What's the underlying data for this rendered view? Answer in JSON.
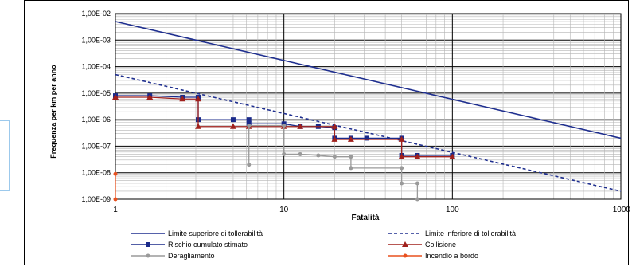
{
  "chart_data": {
    "type": "line",
    "title": "",
    "xlabel": "Fatalità",
    "ylabel": "Frequenza per km per anno",
    "x_scale": "log",
    "y_scale": "log",
    "xlim": [
      1,
      1000
    ],
    "ylim": [
      1e-09,
      0.01
    ],
    "grid": true,
    "legend_position": "bottom",
    "x_tick_labels": [
      "1",
      "10",
      "100",
      "1000"
    ],
    "y_tick_labels": [
      "1,00E-09",
      "1,00E-08",
      "1,00E-07",
      "1,00E-06",
      "1,00E-05",
      "1,00E-04",
      "1,00E-03",
      "1,00E-02"
    ],
    "series": [
      {
        "name": "Limite superiore di tollerabilità",
        "color": "#1f2f8f",
        "style": "solid",
        "marker": "none",
        "points": [
          [
            1,
            0.005
          ],
          [
            1000,
            2e-07
          ]
        ]
      },
      {
        "name": "Limite inferiore di tollerabilità",
        "color": "#1f2f8f",
        "style": "dashed",
        "marker": "none",
        "points": [
          [
            1,
            5e-05
          ],
          [
            1000,
            2e-09
          ]
        ]
      },
      {
        "name": "Rischio cumulato stimato",
        "color": "#1a2a8a",
        "style": "solid",
        "marker": "square",
        "points": [
          [
            1,
            8e-06
          ],
          [
            1.6,
            8e-06
          ],
          [
            2.5,
            7e-06
          ],
          [
            3.1,
            7e-06
          ],
          [
            3.1,
            1e-06
          ],
          [
            5,
            1e-06
          ],
          [
            6.2,
            1e-06
          ],
          [
            6.2,
            7e-07
          ],
          [
            10,
            7e-07
          ],
          [
            12.5,
            5.5e-07
          ],
          [
            16,
            5.5e-07
          ],
          [
            20,
            5e-07
          ],
          [
            20,
            2e-07
          ],
          [
            25,
            2e-07
          ],
          [
            31,
            2e-07
          ],
          [
            50,
            2e-07
          ],
          [
            50,
            4.5e-08
          ],
          [
            62,
            4.5e-08
          ],
          [
            100,
            4.5e-08
          ]
        ]
      },
      {
        "name": "Collisione",
        "color": "#a0201c",
        "style": "solid",
        "marker": "triangle",
        "points": [
          [
            1,
            7e-06
          ],
          [
            1.6,
            7e-06
          ],
          [
            2.5,
            6e-06
          ],
          [
            3.1,
            6e-06
          ],
          [
            3.1,
            5.5e-07
          ],
          [
            5,
            5.5e-07
          ],
          [
            6.2,
            5.5e-07
          ],
          [
            10,
            5.5e-07
          ],
          [
            12.5,
            5.5e-07
          ],
          [
            20,
            5.5e-07
          ],
          [
            20,
            1.8e-07
          ],
          [
            25,
            1.8e-07
          ],
          [
            50,
            1.8e-07
          ],
          [
            50,
            4e-08
          ],
          [
            62,
            4e-08
          ],
          [
            100,
            4e-08
          ]
        ]
      },
      {
        "name": "Deragliamento",
        "color": "#9a9a9a",
        "style": "solid",
        "marker": "circle",
        "points": [
          [
            6.2,
            2e-08
          ],
          [
            6.2,
            6e-07
          ],
          [
            10,
            6e-07
          ],
          [
            10,
            5e-08
          ],
          [
            12.5,
            5e-08
          ],
          [
            16,
            4.5e-08
          ],
          [
            20,
            4e-08
          ],
          [
            25,
            4e-08
          ],
          [
            25,
            1.5e-08
          ],
          [
            50,
            1.5e-08
          ],
          [
            50,
            4e-09
          ],
          [
            62,
            4e-09
          ],
          [
            62,
            1e-09
          ]
        ]
      },
      {
        "name": "Incendio a bordo",
        "color": "#e8501e",
        "style": "solid",
        "marker": "circle",
        "points": [
          [
            1,
            9e-09
          ],
          [
            1,
            1e-09
          ]
        ]
      }
    ]
  }
}
